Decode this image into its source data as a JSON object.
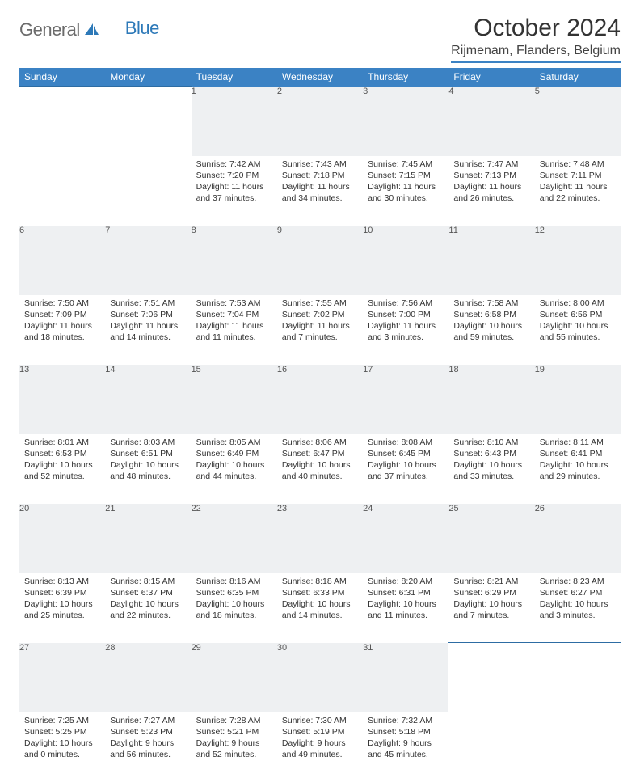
{
  "brand": {
    "text1": "General",
    "text2": "Blue",
    "icon_color": "#2d79b8"
  },
  "title": "October 2024",
  "location": "Rijmenam, Flanders, Belgium",
  "colors": {
    "header_bg": "#3b82c4",
    "header_text": "#ffffff",
    "daynum_bg": "#eef0f2",
    "row_border": "#2d6ca3",
    "body_text": "#333333"
  },
  "weekdays": [
    "Sunday",
    "Monday",
    "Tuesday",
    "Wednesday",
    "Thursday",
    "Friday",
    "Saturday"
  ],
  "weeks": [
    [
      null,
      null,
      {
        "n": "1",
        "sr": "7:42 AM",
        "ss": "7:20 PM",
        "dl": "11 hours and 37 minutes."
      },
      {
        "n": "2",
        "sr": "7:43 AM",
        "ss": "7:18 PM",
        "dl": "11 hours and 34 minutes."
      },
      {
        "n": "3",
        "sr": "7:45 AM",
        "ss": "7:15 PM",
        "dl": "11 hours and 30 minutes."
      },
      {
        "n": "4",
        "sr": "7:47 AM",
        "ss": "7:13 PM",
        "dl": "11 hours and 26 minutes."
      },
      {
        "n": "5",
        "sr": "7:48 AM",
        "ss": "7:11 PM",
        "dl": "11 hours and 22 minutes."
      }
    ],
    [
      {
        "n": "6",
        "sr": "7:50 AM",
        "ss": "7:09 PM",
        "dl": "11 hours and 18 minutes."
      },
      {
        "n": "7",
        "sr": "7:51 AM",
        "ss": "7:06 PM",
        "dl": "11 hours and 14 minutes."
      },
      {
        "n": "8",
        "sr": "7:53 AM",
        "ss": "7:04 PM",
        "dl": "11 hours and 11 minutes."
      },
      {
        "n": "9",
        "sr": "7:55 AM",
        "ss": "7:02 PM",
        "dl": "11 hours and 7 minutes."
      },
      {
        "n": "10",
        "sr": "7:56 AM",
        "ss": "7:00 PM",
        "dl": "11 hours and 3 minutes."
      },
      {
        "n": "11",
        "sr": "7:58 AM",
        "ss": "6:58 PM",
        "dl": "10 hours and 59 minutes."
      },
      {
        "n": "12",
        "sr": "8:00 AM",
        "ss": "6:56 PM",
        "dl": "10 hours and 55 minutes."
      }
    ],
    [
      {
        "n": "13",
        "sr": "8:01 AM",
        "ss": "6:53 PM",
        "dl": "10 hours and 52 minutes."
      },
      {
        "n": "14",
        "sr": "8:03 AM",
        "ss": "6:51 PM",
        "dl": "10 hours and 48 minutes."
      },
      {
        "n": "15",
        "sr": "8:05 AM",
        "ss": "6:49 PM",
        "dl": "10 hours and 44 minutes."
      },
      {
        "n": "16",
        "sr": "8:06 AM",
        "ss": "6:47 PM",
        "dl": "10 hours and 40 minutes."
      },
      {
        "n": "17",
        "sr": "8:08 AM",
        "ss": "6:45 PM",
        "dl": "10 hours and 37 minutes."
      },
      {
        "n": "18",
        "sr": "8:10 AM",
        "ss": "6:43 PM",
        "dl": "10 hours and 33 minutes."
      },
      {
        "n": "19",
        "sr": "8:11 AM",
        "ss": "6:41 PM",
        "dl": "10 hours and 29 minutes."
      }
    ],
    [
      {
        "n": "20",
        "sr": "8:13 AM",
        "ss": "6:39 PM",
        "dl": "10 hours and 25 minutes."
      },
      {
        "n": "21",
        "sr": "8:15 AM",
        "ss": "6:37 PM",
        "dl": "10 hours and 22 minutes."
      },
      {
        "n": "22",
        "sr": "8:16 AM",
        "ss": "6:35 PM",
        "dl": "10 hours and 18 minutes."
      },
      {
        "n": "23",
        "sr": "8:18 AM",
        "ss": "6:33 PM",
        "dl": "10 hours and 14 minutes."
      },
      {
        "n": "24",
        "sr": "8:20 AM",
        "ss": "6:31 PM",
        "dl": "10 hours and 11 minutes."
      },
      {
        "n": "25",
        "sr": "8:21 AM",
        "ss": "6:29 PM",
        "dl": "10 hours and 7 minutes."
      },
      {
        "n": "26",
        "sr": "8:23 AM",
        "ss": "6:27 PM",
        "dl": "10 hours and 3 minutes."
      }
    ],
    [
      {
        "n": "27",
        "sr": "7:25 AM",
        "ss": "5:25 PM",
        "dl": "10 hours and 0 minutes."
      },
      {
        "n": "28",
        "sr": "7:27 AM",
        "ss": "5:23 PM",
        "dl": "9 hours and 56 minutes."
      },
      {
        "n": "29",
        "sr": "7:28 AM",
        "ss": "5:21 PM",
        "dl": "9 hours and 52 minutes."
      },
      {
        "n": "30",
        "sr": "7:30 AM",
        "ss": "5:19 PM",
        "dl": "9 hours and 49 minutes."
      },
      {
        "n": "31",
        "sr": "7:32 AM",
        "ss": "5:18 PM",
        "dl": "9 hours and 45 minutes."
      },
      null,
      null
    ]
  ],
  "labels": {
    "sunrise": "Sunrise:",
    "sunset": "Sunset:",
    "daylight": "Daylight:"
  }
}
